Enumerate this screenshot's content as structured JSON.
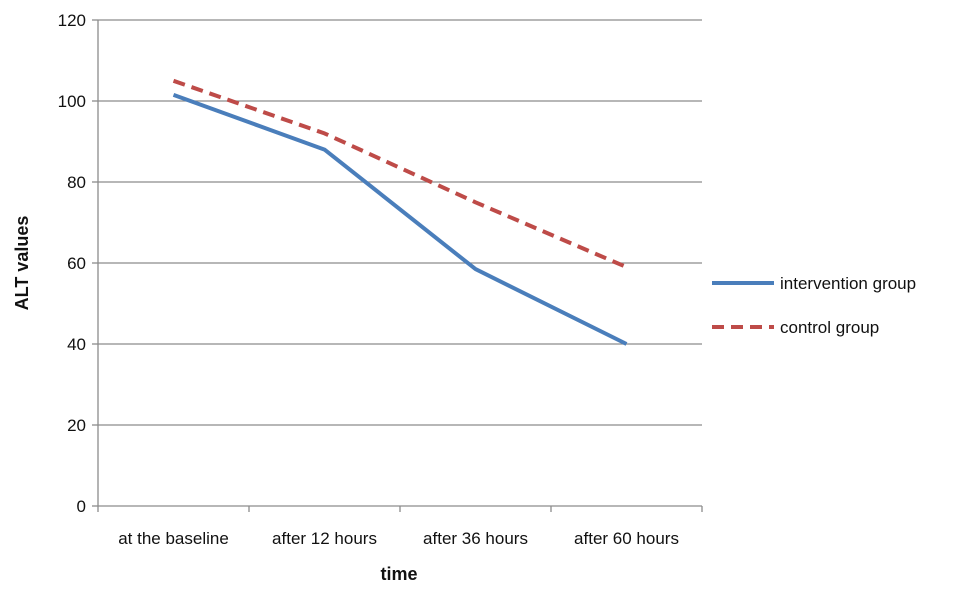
{
  "chart_data": {
    "type": "line",
    "categories": [
      "at the baseline",
      "after 12 hours",
      "after 36 hours",
      "after 60 hours"
    ],
    "series": [
      {
        "name": "intervention group",
        "values": [
          101.5,
          88,
          58.5,
          40
        ],
        "color": "#4a7ebb",
        "style": "solid"
      },
      {
        "name": "control group",
        "values": [
          105,
          92,
          75,
          59
        ],
        "color": "#be4b48",
        "style": "dashed"
      }
    ],
    "xlabel": "time",
    "ylabel": "ALT values",
    "ylim": [
      0,
      120
    ],
    "yticks": [
      0,
      20,
      40,
      60,
      80,
      100,
      120
    ],
    "grid": "horizontal",
    "legend_position": "right"
  }
}
